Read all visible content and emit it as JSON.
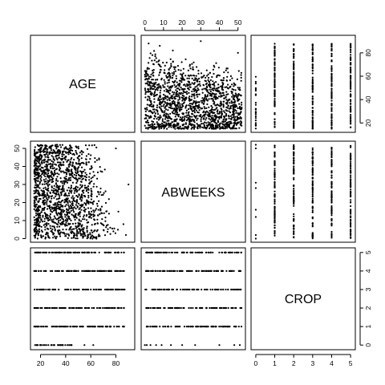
{
  "chart_data": {
    "type": "scatter",
    "title": "",
    "variables": [
      "AGE",
      "ABWEEKS",
      "CROP"
    ],
    "axis_ticks": {
      "AGE": [
        20,
        40,
        60,
        80
      ],
      "ABWEEKS": [
        0,
        10,
        20,
        30,
        40,
        50
      ],
      "CROP": [
        0,
        1,
        2,
        3,
        4,
        5
      ]
    },
    "axis_ranges": {
      "AGE": [
        12,
        95
      ],
      "ABWEEKS": [
        -2,
        54
      ],
      "CROP": [
        -0.25,
        5.25
      ]
    },
    "pairs": [
      {
        "row": "AGE",
        "col": "ABWEEKS",
        "note": "dense cloud; AGE 15-85 across ABWEEKS 0-52, density decreasing with ABWEEKS and age"
      },
      {
        "row": "AGE",
        "col": "CROP",
        "note": "vertical bands at CROP 0-5, AGE range ~15-90 for CROP 1-5"
      },
      {
        "row": "ABWEEKS",
        "col": "CROP",
        "note": "vertical bands at CROP 1-5 covering ABWEEKS 0-52; sparse points at CROP 0"
      },
      {
        "row": "CROP",
        "col": "AGE",
        "note": "horizontal bands at CROP 0-5 covering AGE ~15-90"
      },
      {
        "row": "CROP",
        "col": "ABWEEKS",
        "note": "horizontal bands at CROP 1-5 covering ABWEEKS 0-52; sparse points at CROP 0"
      }
    ],
    "grid": false,
    "legend": "none"
  }
}
